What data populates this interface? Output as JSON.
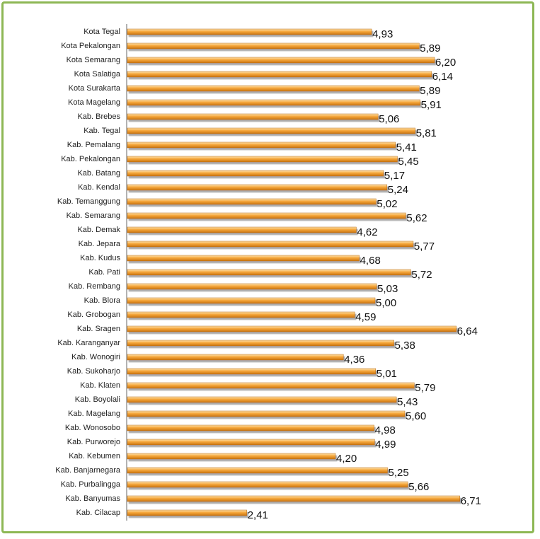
{
  "chart_data": {
    "type": "barh",
    "categories": [
      "Kota Tegal",
      "Kota Pekalongan",
      "Kota Semarang",
      "Kota Salatiga",
      "Kota Surakarta",
      "Kota Magelang",
      "Kab. Brebes",
      "Kab. Tegal",
      "Kab. Pemalang",
      "Kab. Pekalongan",
      "Kab. Batang",
      "Kab. Kendal",
      "Kab. Temanggung",
      "Kab. Semarang",
      "Kab. Demak",
      "Kab. Jepara",
      "Kab. Kudus",
      "Kab. Pati",
      "Kab. Rembang",
      "Kab. Blora",
      "Kab. Grobogan",
      "Kab. Sragen",
      "Kab. Karanganyar",
      "Kab. Wonogiri",
      "Kab. Sukoharjo",
      "Kab. Klaten",
      "Kab. Boyolali",
      "Kab. Magelang",
      "Kab. Wonosobo",
      "Kab. Purworejo",
      "Kab. Kebumen",
      "Kab. Banjarnegara",
      "Kab. Purbalingga",
      "Kab. Banyumas",
      "Kab. Cilacap"
    ],
    "values": [
      4.93,
      5.89,
      6.2,
      6.14,
      5.89,
      5.91,
      5.06,
      5.81,
      5.41,
      5.45,
      5.17,
      5.24,
      5.02,
      5.62,
      4.62,
      5.77,
      4.68,
      5.72,
      5.03,
      5.0,
      4.59,
      6.64,
      5.38,
      4.36,
      5.01,
      5.79,
      5.43,
      5.6,
      4.98,
      4.99,
      4.2,
      5.25,
      5.66,
      6.71,
      2.41
    ],
    "value_labels": [
      "4,93",
      "5,89",
      "6,20",
      "6,14",
      "5,89",
      "5,91",
      "5,06",
      "5,81",
      "5,41",
      "5,45",
      "5,17",
      "5,24",
      "5,02",
      "5,62",
      "4,62",
      "5,77",
      "4,68",
      "5,72",
      "5,03",
      "5,00",
      "4,59",
      "6,64",
      "5,38",
      "4,36",
      "5,01",
      "5,79",
      "5,43",
      "5,60",
      "4,98",
      "4,99",
      "4,20",
      "5,25",
      "5,66",
      "6,71",
      "2,41"
    ],
    "color": "#f0a030",
    "xlim": [
      0,
      8
    ]
  }
}
